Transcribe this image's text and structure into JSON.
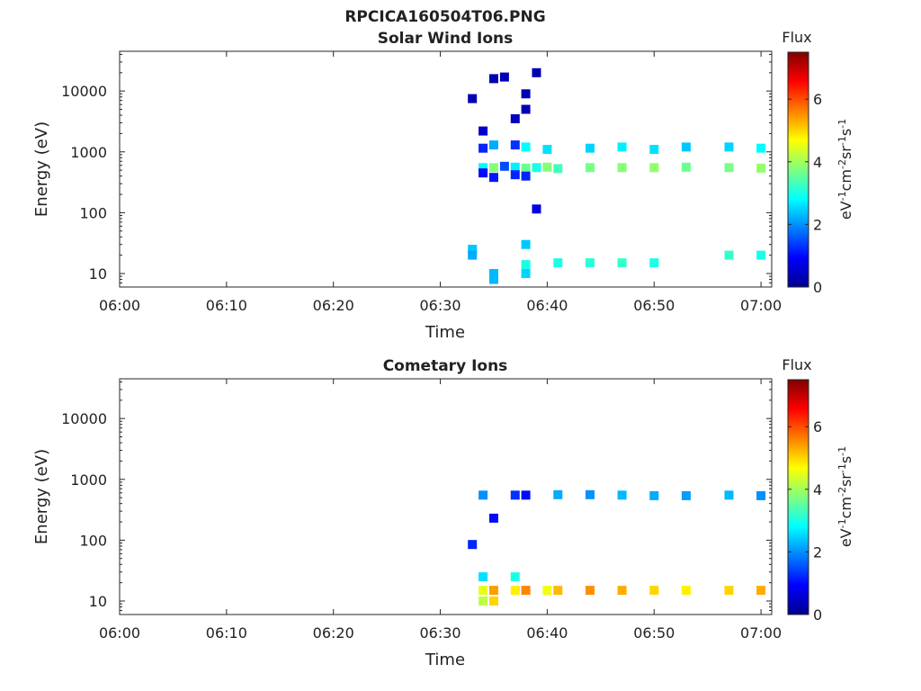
{
  "figure": {
    "title": "RPCICA160504T06.PNG",
    "colorbar_title": "Flux",
    "colorbar_unit": "eV-1cm-2sr-1s-1",
    "colorbar_ticks": [
      "0",
      "2",
      "4",
      "6"
    ],
    "colormap": "jet",
    "colorbar_range": [
      0,
      7.5
    ]
  },
  "chart_data": [
    {
      "type": "heatmap",
      "title": "Solar Wind Ions",
      "xlabel": "Time",
      "ylabel": "Energy (eV)",
      "y_scale": "log",
      "ylim": [
        6,
        45000
      ],
      "xlim": [
        "06:00",
        "07:01"
      ],
      "x_ticks": [
        "06:00",
        "06:10",
        "06:20",
        "06:30",
        "06:40",
        "06:50",
        "07:00"
      ],
      "y_ticks": [
        "10",
        "100",
        "1000",
        "10000"
      ],
      "colorbar_ticks": [
        "0",
        "2",
        "4",
        "6"
      ],
      "cells": [
        {
          "t": "06:33",
          "e": 7500,
          "v": 0.3
        },
        {
          "t": "06:33",
          "e": 25,
          "v": 2.4
        },
        {
          "t": "06:33",
          "e": 20,
          "v": 2.2
        },
        {
          "t": "06:34",
          "e": 1150,
          "v": 1.2
        },
        {
          "t": "06:34",
          "e": 550,
          "v": 2.8
        },
        {
          "t": "06:34",
          "e": 450,
          "v": 1.0
        },
        {
          "t": "06:34",
          "e": 2200,
          "v": 0.5
        },
        {
          "t": "06:35",
          "e": 16000,
          "v": 0.3
        },
        {
          "t": "06:35",
          "e": 1300,
          "v": 2.2
        },
        {
          "t": "06:35",
          "e": 550,
          "v": 3.8
        },
        {
          "t": "06:35",
          "e": 380,
          "v": 1.1
        },
        {
          "t": "06:35",
          "e": 8,
          "v": 2.3
        },
        {
          "t": "06:35",
          "e": 10,
          "v": 2.3
        },
        {
          "t": "06:36",
          "e": 17000,
          "v": 0.3
        },
        {
          "t": "06:36",
          "e": 580,
          "v": 1.5
        },
        {
          "t": "06:37",
          "e": 3500,
          "v": 0.4
        },
        {
          "t": "06:37",
          "e": 1300,
          "v": 1.3
        },
        {
          "t": "06:37",
          "e": 560,
          "v": 2.7
        },
        {
          "t": "06:37",
          "e": 420,
          "v": 1.2
        },
        {
          "t": "06:38",
          "e": 5000,
          "v": 0.3
        },
        {
          "t": "06:38",
          "e": 1200,
          "v": 2.8
        },
        {
          "t": "06:38",
          "e": 540,
          "v": 3.6
        },
        {
          "t": "06:38",
          "e": 400,
          "v": 1.2
        },
        {
          "t": "06:38",
          "e": 9000,
          "v": 0.3
        },
        {
          "t": "06:38",
          "e": 30,
          "v": 2.4
        },
        {
          "t": "06:38",
          "e": 14,
          "v": 3.0
        },
        {
          "t": "06:38",
          "e": 10,
          "v": 2.5
        },
        {
          "t": "06:39",
          "e": 20000,
          "v": 0.3
        },
        {
          "t": "06:39",
          "e": 550,
          "v": 3.0
        },
        {
          "t": "06:39",
          "e": 115,
          "v": 0.7
        },
        {
          "t": "06:40",
          "e": 1100,
          "v": 2.6
        },
        {
          "t": "06:40",
          "e": 560,
          "v": 3.8
        },
        {
          "t": "06:41",
          "e": 530,
          "v": 3.3
        },
        {
          "t": "06:41",
          "e": 15,
          "v": 3.0
        },
        {
          "t": "06:44",
          "e": 1150,
          "v": 2.5
        },
        {
          "t": "06:44",
          "e": 550,
          "v": 3.7
        },
        {
          "t": "06:44",
          "e": 15,
          "v": 3.1
        },
        {
          "t": "06:47",
          "e": 1200,
          "v": 2.7
        },
        {
          "t": "06:47",
          "e": 550,
          "v": 3.8
        },
        {
          "t": "06:47",
          "e": 15,
          "v": 3.2
        },
        {
          "t": "06:50",
          "e": 1100,
          "v": 2.6
        },
        {
          "t": "06:50",
          "e": 550,
          "v": 3.9
        },
        {
          "t": "06:50",
          "e": 15,
          "v": 3.0
        },
        {
          "t": "06:53",
          "e": 1200,
          "v": 2.4
        },
        {
          "t": "06:53",
          "e": 560,
          "v": 3.6
        },
        {
          "t": "06:57",
          "e": 1200,
          "v": 2.5
        },
        {
          "t": "06:57",
          "e": 550,
          "v": 3.7
        },
        {
          "t": "06:57",
          "e": 20,
          "v": 3.2
        },
        {
          "t": "07:00",
          "e": 1150,
          "v": 2.8
        },
        {
          "t": "07:00",
          "e": 540,
          "v": 3.9
        },
        {
          "t": "07:00",
          "e": 20,
          "v": 3.0
        }
      ]
    },
    {
      "type": "heatmap",
      "title": "Cometary Ions",
      "xlabel": "Time",
      "ylabel": "Energy (eV)",
      "y_scale": "log",
      "ylim": [
        6,
        45000
      ],
      "xlim": [
        "06:00",
        "07:01"
      ],
      "x_ticks": [
        "06:00",
        "06:10",
        "06:20",
        "06:30",
        "06:40",
        "06:50",
        "07:00"
      ],
      "y_ticks": [
        "10",
        "100",
        "1000",
        "10000"
      ],
      "colorbar_ticks": [
        "0",
        "2",
        "4",
        "6"
      ],
      "cells": [
        {
          "t": "06:33",
          "e": 85,
          "v": 1.2
        },
        {
          "t": "06:34",
          "e": 550,
          "v": 2.0
        },
        {
          "t": "06:34",
          "e": 25,
          "v": 2.6
        },
        {
          "t": "06:34",
          "e": 15,
          "v": 4.5
        },
        {
          "t": "06:34",
          "e": 10,
          "v": 4.2
        },
        {
          "t": "06:35",
          "e": 15,
          "v": 5.4
        },
        {
          "t": "06:35",
          "e": 10,
          "v": 5.0
        },
        {
          "t": "06:35",
          "e": 230,
          "v": 1.0
        },
        {
          "t": "06:37",
          "e": 550,
          "v": 1.3
        },
        {
          "t": "06:37",
          "e": 25,
          "v": 3.0
        },
        {
          "t": "06:37",
          "e": 15,
          "v": 4.8
        },
        {
          "t": "06:38",
          "e": 15,
          "v": 5.6
        },
        {
          "t": "06:38",
          "e": 550,
          "v": 1.0
        },
        {
          "t": "06:40",
          "e": 15,
          "v": 4.6
        },
        {
          "t": "06:41",
          "e": 560,
          "v": 2.2
        },
        {
          "t": "06:41",
          "e": 15,
          "v": 5.2
        },
        {
          "t": "06:44",
          "e": 560,
          "v": 2.0
        },
        {
          "t": "06:44",
          "e": 15,
          "v": 5.5
        },
        {
          "t": "06:47",
          "e": 550,
          "v": 2.3
        },
        {
          "t": "06:47",
          "e": 15,
          "v": 5.3
        },
        {
          "t": "06:50",
          "e": 540,
          "v": 2.2
        },
        {
          "t": "06:50",
          "e": 15,
          "v": 5.0
        },
        {
          "t": "06:53",
          "e": 540,
          "v": 2.1
        },
        {
          "t": "06:53",
          "e": 15,
          "v": 4.8
        },
        {
          "t": "06:57",
          "e": 550,
          "v": 2.3
        },
        {
          "t": "06:57",
          "e": 15,
          "v": 5.0
        },
        {
          "t": "07:00",
          "e": 540,
          "v": 2.0
        },
        {
          "t": "07:00",
          "e": 15,
          "v": 5.3
        }
      ]
    }
  ]
}
